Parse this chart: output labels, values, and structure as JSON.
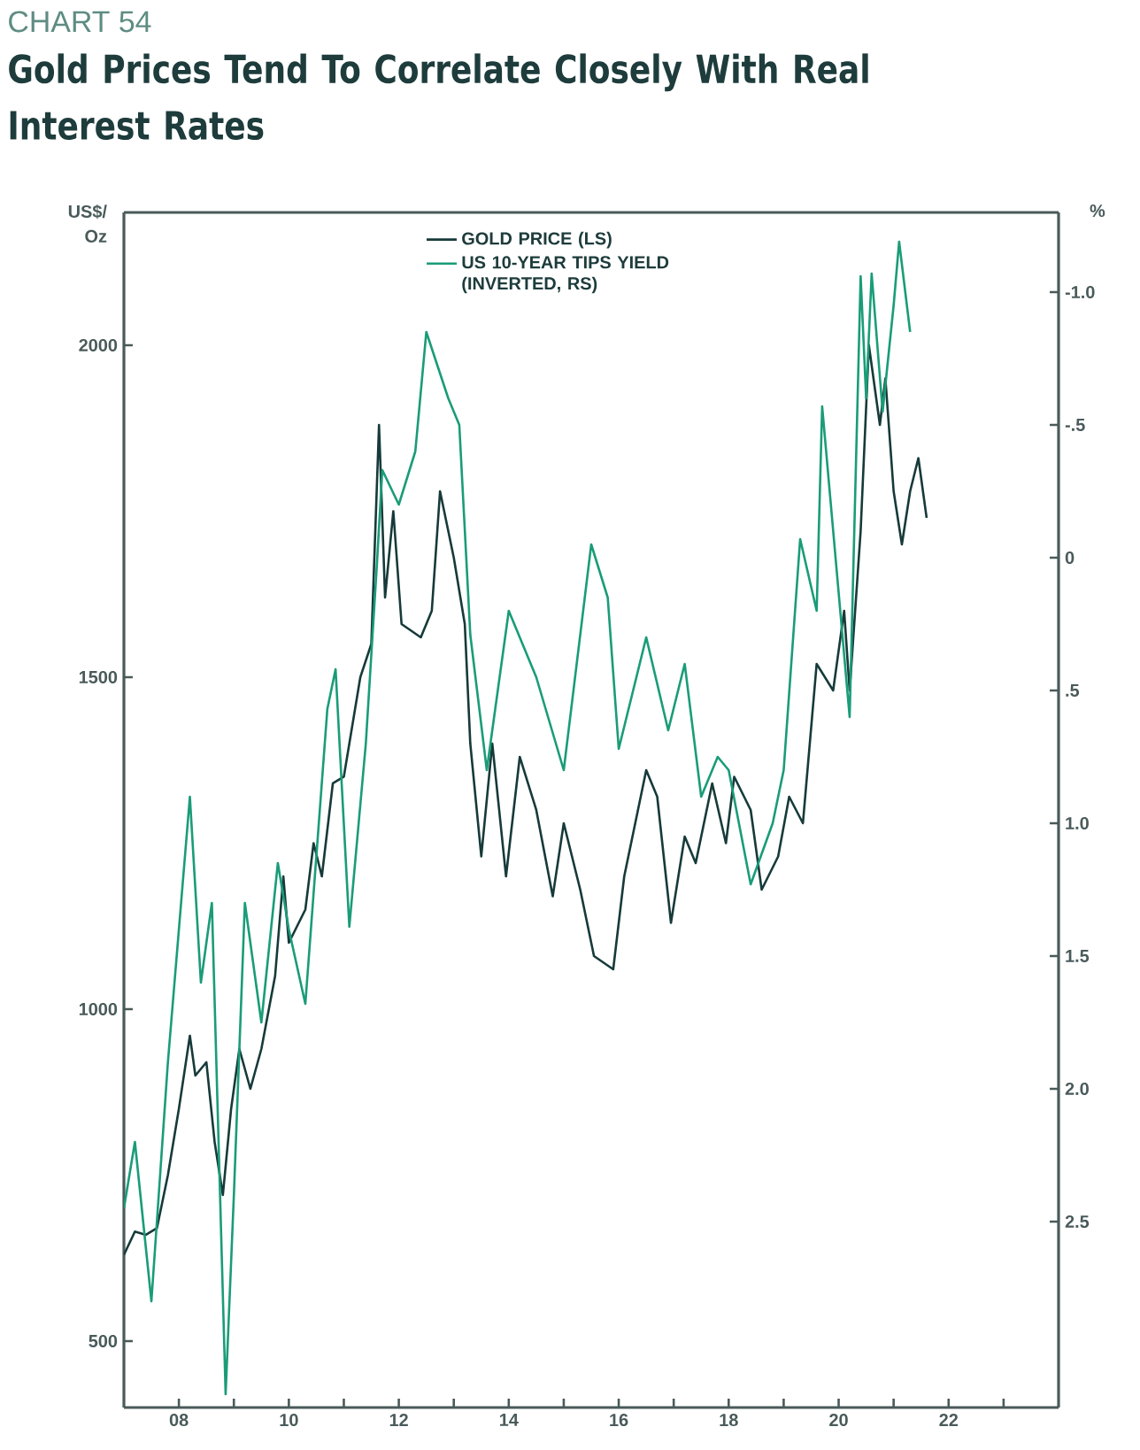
{
  "chart_data": {
    "type": "line",
    "title": "CHART 54",
    "subtitle": "Gold Prices Tend To Correlate Closely With Real Interest Rates",
    "ylabel": "US$/ Oz",
    "y2label": "%",
    "xlim": [
      2007,
      2024
    ],
    "ylim": [
      400,
      2200
    ],
    "y2lim": [
      3.2,
      -1.3
    ],
    "xticks": [
      {
        "value": 2008,
        "label": "08"
      },
      {
        "value": 2009,
        "label": null
      },
      {
        "value": 2010,
        "label": "10"
      },
      {
        "value": 2011,
        "label": null
      },
      {
        "value": 2012,
        "label": "12"
      },
      {
        "value": 2013,
        "label": null
      },
      {
        "value": 2014,
        "label": "14"
      },
      {
        "value": 2015,
        "label": null
      },
      {
        "value": 2016,
        "label": "16"
      },
      {
        "value": 2017,
        "label": null
      },
      {
        "value": 2018,
        "label": "18"
      },
      {
        "value": 2019,
        "label": null
      },
      {
        "value": 2020,
        "label": "20"
      },
      {
        "value": 2021,
        "label": null
      },
      {
        "value": 2022,
        "label": "22"
      },
      {
        "value": 2023,
        "label": null
      }
    ],
    "yticks": [
      500,
      1000,
      1500,
      2000
    ],
    "y2ticks": [
      {
        "value": -1.0,
        "label": "-1.0"
      },
      {
        "value": -0.5,
        "label": "-.5"
      },
      {
        "value": 0,
        "label": "0"
      },
      {
        "value": 0.5,
        "label": ".5"
      },
      {
        "value": 1.0,
        "label": "1.0"
      },
      {
        "value": 1.5,
        "label": "1.5"
      },
      {
        "value": 2.0,
        "label": "2.0"
      },
      {
        "value": 2.5,
        "label": "2.5"
      }
    ],
    "legend": "top",
    "grid": false,
    "marker": "none",
    "line_style": "solid",
    "series": [
      {
        "name": "GOLD PRICE (LS)",
        "color": "#173a3a",
        "x": [
          2007.0,
          2007.2,
          2007.4,
          2007.6,
          2007.8,
          2008.0,
          2008.2,
          2008.3,
          2008.5,
          2008.65,
          2008.8,
          2008.95,
          2009.1,
          2009.3,
          2009.5,
          2009.75,
          2009.9,
          2010.0,
          2010.3,
          2010.45,
          2010.6,
          2010.8,
          2011.0,
          2011.3,
          2011.5,
          2011.64,
          2011.75,
          2011.9,
          2012.05,
          2012.4,
          2012.6,
          2012.75,
          2013.0,
          2013.2,
          2013.3,
          2013.5,
          2013.7,
          2013.95,
          2014.2,
          2014.5,
          2014.8,
          2015.0,
          2015.3,
          2015.55,
          2015.9,
          2016.1,
          2016.5,
          2016.7,
          2016.95,
          2017.2,
          2017.4,
          2017.7,
          2017.95,
          2018.1,
          2018.4,
          2018.6,
          2018.9,
          2019.1,
          2019.35,
          2019.6,
          2019.9,
          2020.1,
          2020.2,
          2020.4,
          2020.55,
          2020.75,
          2020.85,
          2021.0,
          2021.15,
          2021.3,
          2021.45,
          2021.6
        ],
        "values": [
          630,
          665,
          660,
          670,
          750,
          850,
          960,
          900,
          920,
          800,
          720,
          850,
          940,
          880,
          940,
          1050,
          1200,
          1100,
          1150,
          1250,
          1200,
          1340,
          1350,
          1500,
          1550,
          1880,
          1620,
          1750,
          1580,
          1560,
          1600,
          1780,
          1680,
          1580,
          1400,
          1230,
          1400,
          1200,
          1380,
          1300,
          1170,
          1280,
          1180,
          1080,
          1060,
          1200,
          1360,
          1320,
          1130,
          1260,
          1220,
          1340,
          1250,
          1350,
          1300,
          1180,
          1230,
          1320,
          1280,
          1520,
          1480,
          1600,
          1480,
          1720,
          2000,
          1880,
          1950,
          1780,
          1700,
          1780,
          1830,
          1740
        ]
      },
      {
        "name": "US 10-YEAR TIPS YIELD (INVERTED, RS)",
        "color": "#1a9c78",
        "axis": "y2",
        "x": [
          2007.0,
          2007.2,
          2007.5,
          2007.8,
          2008.0,
          2008.2,
          2008.4,
          2008.6,
          2008.85,
          2009.0,
          2009.2,
          2009.5,
          2009.8,
          2010.0,
          2010.3,
          2010.7,
          2010.85,
          2011.1,
          2011.4,
          2011.6,
          2011.7,
          2012.0,
          2012.3,
          2012.5,
          2012.9,
          2013.1,
          2013.3,
          2013.6,
          2013.8,
          2014.0,
          2014.5,
          2015.0,
          2015.5,
          2015.8,
          2016.0,
          2016.5,
          2016.9,
          2017.2,
          2017.5,
          2017.8,
          2018.0,
          2018.4,
          2018.8,
          2019.0,
          2019.3,
          2019.6,
          2019.7,
          2020.2,
          2020.4,
          2020.5,
          2020.6,
          2020.8,
          2021.0,
          2021.1,
          2021.3
        ],
        "values": [
          2.45,
          2.2,
          2.8,
          1.9,
          1.4,
          0.9,
          1.6,
          1.3,
          3.15,
          2.4,
          1.3,
          1.75,
          1.15,
          1.4,
          1.68,
          0.57,
          0.42,
          1.39,
          0.7,
          0.03,
          -0.33,
          -0.2,
          -0.4,
          -0.85,
          -0.6,
          -0.5,
          0.29,
          0.8,
          0.5,
          0.2,
          0.45,
          0.8,
          -0.05,
          0.15,
          0.72,
          0.3,
          0.65,
          0.4,
          0.9,
          0.75,
          0.8,
          1.23,
          1.0,
          0.8,
          -0.07,
          0.2,
          -0.57,
          0.6,
          -1.06,
          -0.6,
          -1.07,
          -0.55,
          -0.95,
          -1.19,
          -0.85
        ]
      }
    ]
  }
}
